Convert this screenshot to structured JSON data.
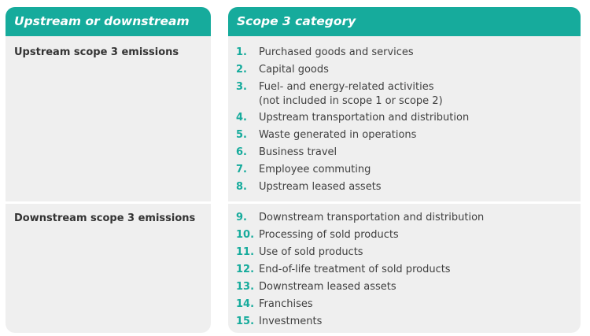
{
  "columns": {
    "left_header": "Upstream or downstream",
    "right_header": "Scope 3 category"
  },
  "upstream": {
    "label": "Upstream scope 3 emissions",
    "items": [
      {
        "num": "1.",
        "text": "Purchased goods and services"
      },
      {
        "num": "2.",
        "text": "Capital goods"
      },
      {
        "num": "3.",
        "text": "Fuel- and energy-related activities",
        "text2": "(not included in scope 1 or scope 2)"
      },
      {
        "num": "4.",
        "text": "Upstream transportation and distribution"
      },
      {
        "num": "5.",
        "text": "Waste generated in operations"
      },
      {
        "num": "6.",
        "text": "Business travel"
      },
      {
        "num": "7.",
        "text": "Employee commuting"
      },
      {
        "num": "8.",
        "text": "Upstream leased assets"
      }
    ]
  },
  "downstream": {
    "label": "Downstream scope 3 emissions",
    "items": [
      {
        "num": "9.",
        "text": "Downstream transportation and distribution"
      },
      {
        "num": "10.",
        "text": "Processing of sold products"
      },
      {
        "num": "11.",
        "text": "Use of sold products"
      },
      {
        "num": "12.",
        "text": "End-of-life treatment of sold products"
      },
      {
        "num": "13.",
        "text": "Downstream leased assets"
      },
      {
        "num": "14.",
        "text": "Franchises"
      },
      {
        "num": "15.",
        "text": "Investments"
      }
    ]
  },
  "colors": {
    "accent": "#16ab9c",
    "panel": "#efefef"
  }
}
